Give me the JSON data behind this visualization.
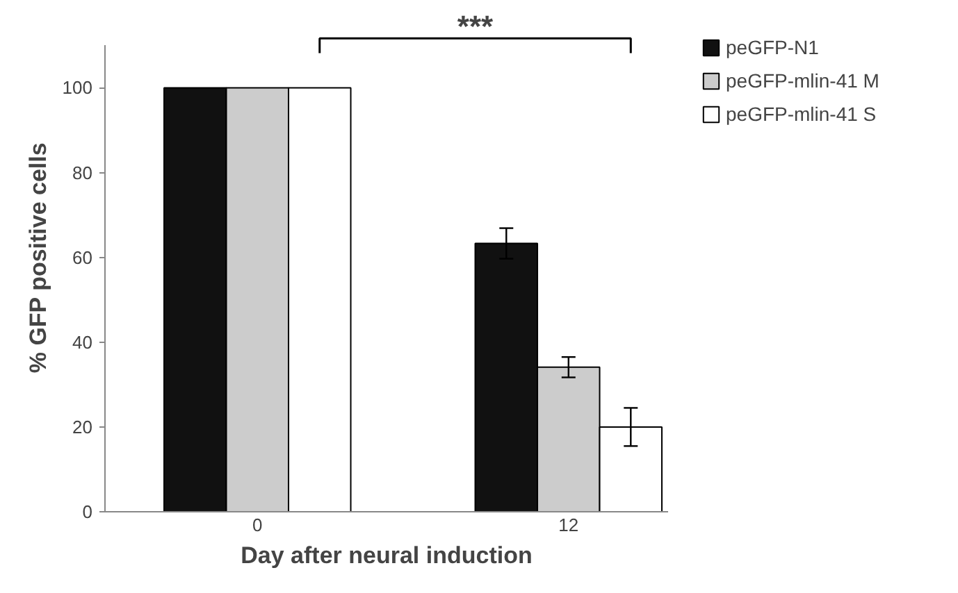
{
  "chart_data": {
    "type": "bar",
    "xlabel": "Day after neural induction",
    "ylabel": "% GFP positive cells",
    "categories": [
      "0",
      "12"
    ],
    "series": [
      {
        "name": "peGFP-N1",
        "color": "#111111",
        "values": [
          100,
          63.3
        ],
        "errors": [
          null,
          3.6
        ]
      },
      {
        "name": "peGFP-mlin-41 M",
        "color": "#cccccc",
        "values": [
          100,
          34.1
        ],
        "errors": [
          null,
          2.4
        ]
      },
      {
        "name": "peGFP-mlin-41 S",
        "color": "#ffffff",
        "values": [
          100,
          20.0
        ],
        "errors": [
          null,
          4.5
        ]
      }
    ],
    "ylim": [
      0,
      110
    ],
    "yticks": [
      0,
      20,
      40,
      60,
      80,
      100
    ],
    "grid": false,
    "legend": "top right",
    "annotations": [
      "***"
    ]
  }
}
